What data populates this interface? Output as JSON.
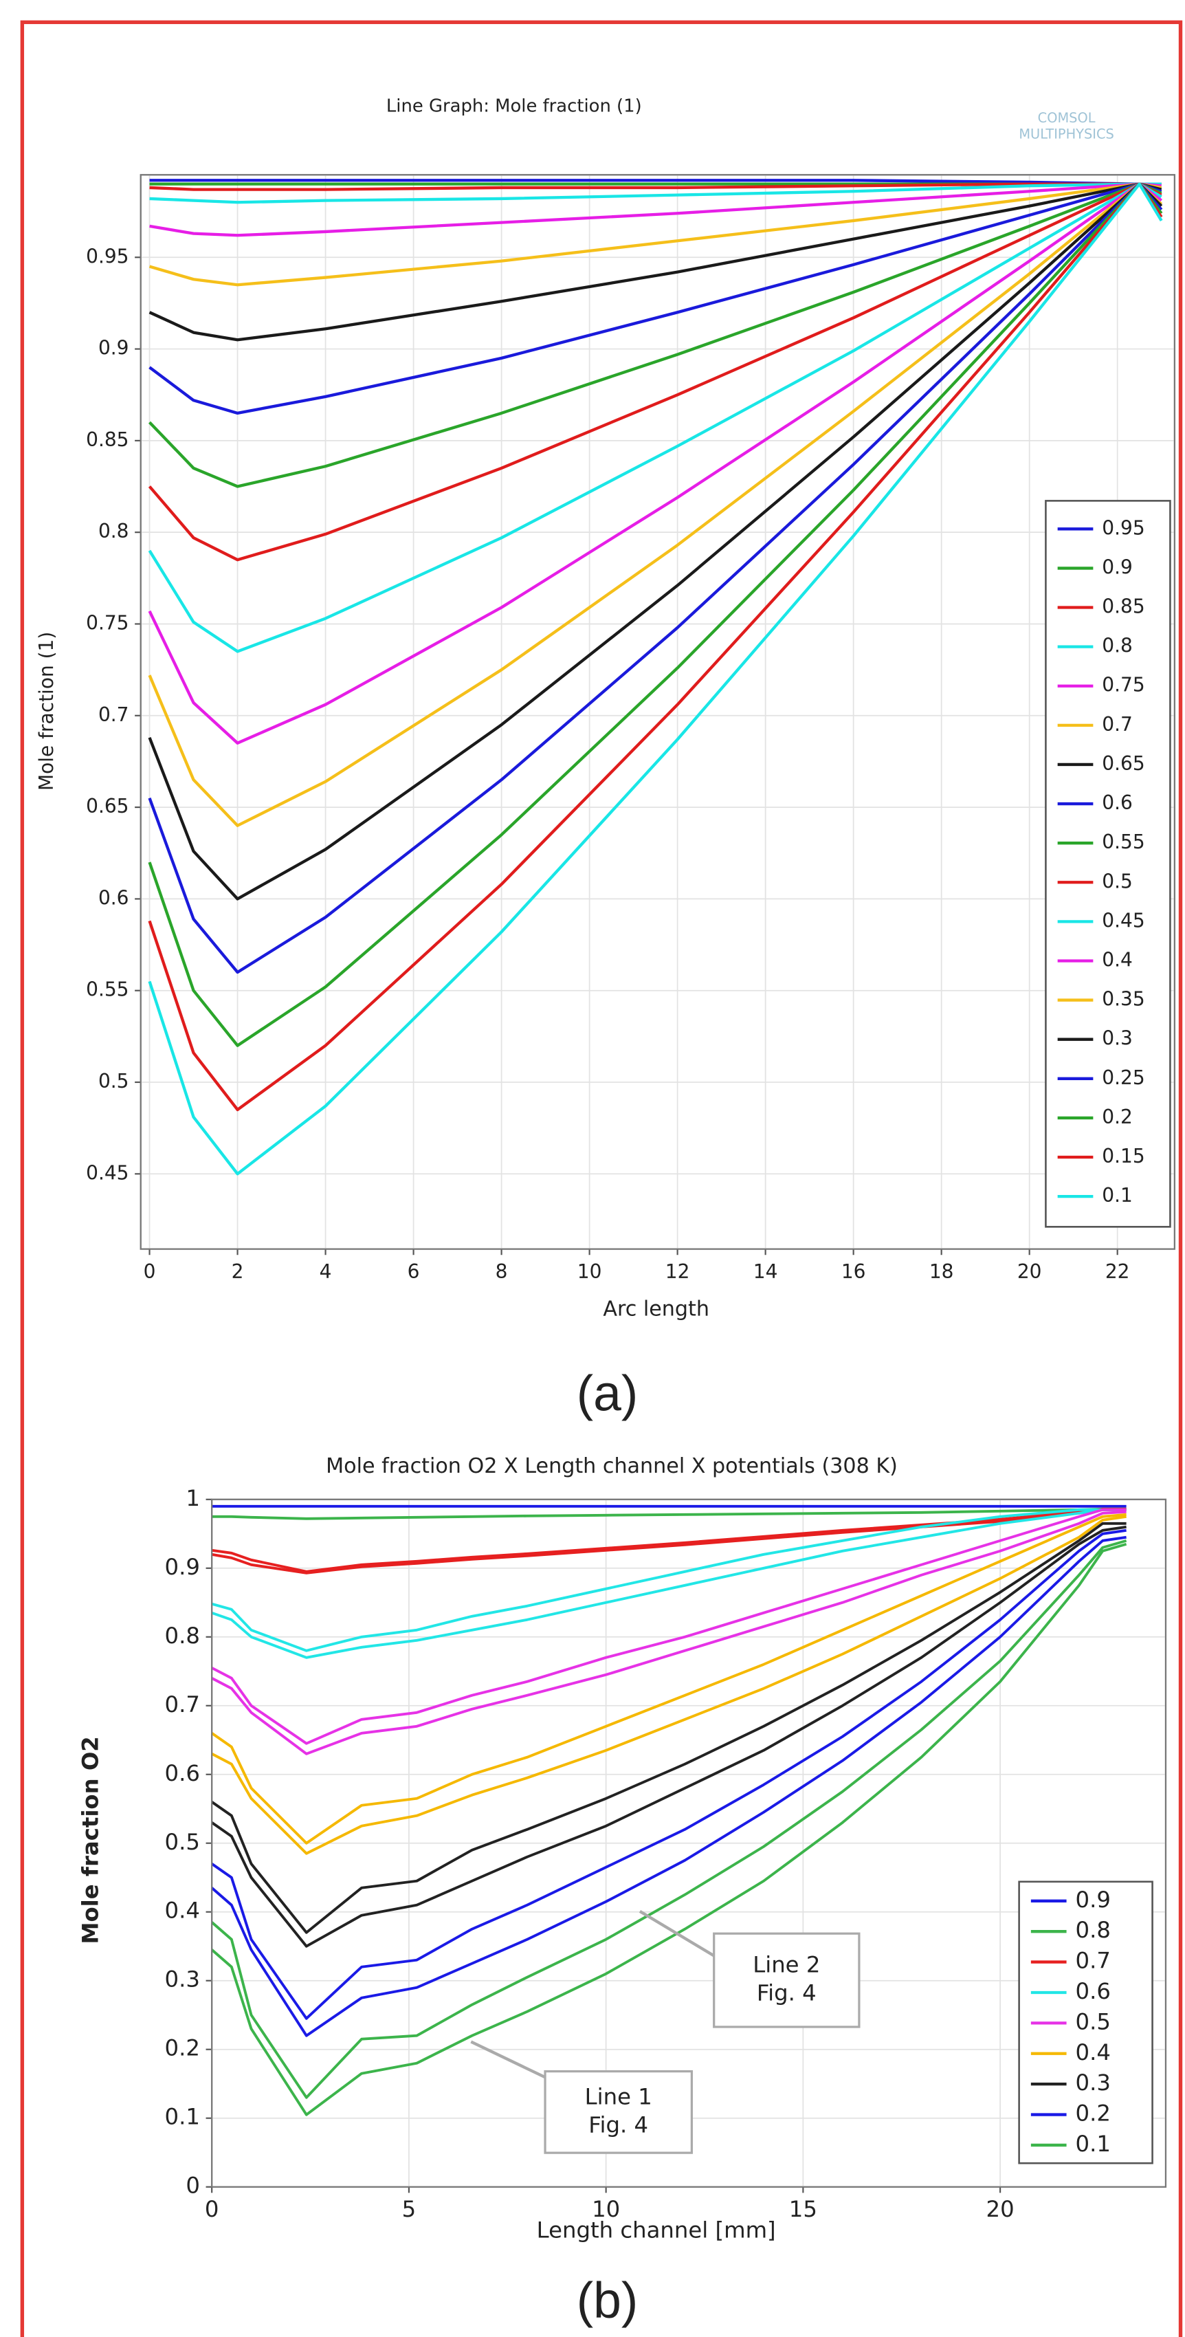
{
  "chart_data": [
    {
      "type": "line",
      "title": "Line Graph: Mole fraction (1)",
      "logo": [
        "COMSOL",
        "MULTIPHYSICS"
      ],
      "x_label": "Arc length",
      "y_label": "Mole fraction (1)",
      "caption": "(a)",
      "x": [
        0,
        1,
        2,
        4,
        8,
        12,
        16,
        20,
        22.5,
        23
      ],
      "xlim": [
        -0.2,
        23.3
      ],
      "xticks": [
        0,
        2,
        4,
        6,
        8,
        10,
        12,
        14,
        16,
        18,
        20,
        22
      ],
      "ylim": [
        0.409,
        0.995
      ],
      "yticks": [
        0.45,
        0.5,
        0.55,
        0.6,
        0.65,
        0.7,
        0.75,
        0.8,
        0.85,
        0.9,
        0.95
      ],
      "grid": true,
      "legend": "lower-right",
      "series": [
        {
          "name": "0.95",
          "color": "#1a1adb",
          "values": [
            0.992,
            0.992,
            0.992,
            0.992,
            0.992,
            0.992,
            0.992,
            0.991,
            0.99,
            0.99
          ]
        },
        {
          "name": "0.9",
          "color": "#2aa52a",
          "values": [
            0.99,
            0.99,
            0.99,
            0.99,
            0.99,
            0.99,
            0.99,
            0.99,
            0.99,
            0.988
          ]
        },
        {
          "name": "0.85",
          "color": "#e01c1c",
          "values": [
            0.988,
            0.987,
            0.987,
            0.987,
            0.988,
            0.988,
            0.989,
            0.99,
            0.99,
            0.99
          ]
        },
        {
          "name": "0.8",
          "color": "#19e6e6",
          "values": [
            0.982,
            0.981,
            0.98,
            0.981,
            0.982,
            0.984,
            0.986,
            0.989,
            0.99,
            0.99
          ]
        },
        {
          "name": "0.75",
          "color": "#e61ee6",
          "values": [
            0.967,
            0.963,
            0.962,
            0.964,
            0.969,
            0.974,
            0.98,
            0.986,
            0.99,
            0.989
          ]
        },
        {
          "name": "0.7",
          "color": "#f5bf1a",
          "values": [
            0.945,
            0.938,
            0.935,
            0.939,
            0.948,
            0.959,
            0.97,
            0.982,
            0.99,
            0.988
          ]
        },
        {
          "name": "0.65",
          "color": "#1a1a1a",
          "values": [
            0.92,
            0.909,
            0.905,
            0.911,
            0.926,
            0.942,
            0.96,
            0.978,
            0.99,
            0.987
          ]
        },
        {
          "name": "0.6",
          "color": "#1a1adb",
          "values": [
            0.89,
            0.872,
            0.865,
            0.874,
            0.895,
            0.92,
            0.946,
            0.973,
            0.99,
            0.986
          ]
        },
        {
          "name": "0.55",
          "color": "#2aa52a",
          "values": [
            0.86,
            0.835,
            0.825,
            0.836,
            0.865,
            0.897,
            0.931,
            0.967,
            0.99,
            0.985
          ]
        },
        {
          "name": "0.5",
          "color": "#e01c1c",
          "values": [
            0.825,
            0.797,
            0.785,
            0.799,
            0.835,
            0.875,
            0.917,
            0.962,
            0.99,
            0.984
          ]
        },
        {
          "name": "0.45",
          "color": "#19e6e6",
          "values": [
            0.79,
            0.751,
            0.735,
            0.753,
            0.797,
            0.847,
            0.899,
            0.955,
            0.99,
            0.983
          ]
        },
        {
          "name": "0.4",
          "color": "#e61ee6",
          "values": [
            0.757,
            0.707,
            0.685,
            0.706,
            0.759,
            0.819,
            0.882,
            0.948,
            0.99,
            0.981
          ]
        },
        {
          "name": "0.35",
          "color": "#f5bf1a",
          "values": [
            0.722,
            0.665,
            0.64,
            0.664,
            0.725,
            0.793,
            0.866,
            0.941,
            0.99,
            0.979
          ]
        },
        {
          "name": "0.3",
          "color": "#1a1a1a",
          "values": [
            0.688,
            0.626,
            0.6,
            0.627,
            0.695,
            0.771,
            0.852,
            0.936,
            0.99,
            0.978
          ]
        },
        {
          "name": "0.25",
          "color": "#1a1adb",
          "values": [
            0.655,
            0.589,
            0.56,
            0.59,
            0.665,
            0.748,
            0.837,
            0.93,
            0.99,
            0.976
          ]
        },
        {
          "name": "0.2",
          "color": "#2aa52a",
          "values": [
            0.62,
            0.55,
            0.52,
            0.552,
            0.635,
            0.726,
            0.823,
            0.925,
            0.99,
            0.974
          ]
        },
        {
          "name": "0.15",
          "color": "#e01c1c",
          "values": [
            0.588,
            0.516,
            0.485,
            0.52,
            0.608,
            0.706,
            0.811,
            0.92,
            0.99,
            0.972
          ]
        },
        {
          "name": "0.1",
          "color": "#19e6e6",
          "values": [
            0.555,
            0.481,
            0.45,
            0.487,
            0.582,
            0.687,
            0.798,
            0.915,
            0.99,
            0.97
          ]
        }
      ]
    },
    {
      "type": "line",
      "title": "Mole fraction O2  X  Length channel  X potentials (308 K)",
      "x_label": "Length channel [mm]",
      "y_label": "Mole fraction O2",
      "caption": "(b)",
      "x": [
        0,
        0.5,
        1,
        2.4,
        3.8,
        5.2,
        6.6,
        8,
        10,
        12,
        14,
        16,
        18,
        20,
        22,
        22.6,
        23.2
      ],
      "xlim": [
        0,
        24.2
      ],
      "xticks": [
        0,
        5,
        10,
        15,
        20
      ],
      "ylim": [
        0,
        1
      ],
      "yticks": [
        0,
        0.1,
        0.2,
        0.3,
        0.4,
        0.5,
        0.6,
        0.7,
        0.8,
        0.9,
        1
      ],
      "grid": true,
      "legend": "lower-right",
      "annotations": [
        {
          "text": [
            "Line 2",
            "Fig. 4"
          ]
        },
        {
          "text": [
            "Line 1",
            "Fig. 4"
          ]
        }
      ],
      "series": [
        {
          "name": "0.9",
          "color": "#1a1ae6",
          "lines": [
            [
              0.99,
              0.99,
              0.99,
              0.99,
              0.99,
              0.99,
              0.99,
              0.99,
              0.99,
              0.99,
              0.99,
              0.99,
              0.99,
              0.99,
              0.99,
              0.99,
              0.99
            ]
          ]
        },
        {
          "name": "0.8",
          "color": "#3cb44b",
          "lines": [
            [
              0.975,
              0.975,
              0.974,
              0.972,
              0.973,
              0.974,
              0.975,
              0.976,
              0.977,
              0.978,
              0.979,
              0.98,
              0.981,
              0.983,
              0.985,
              0.986,
              0.986
            ]
          ]
        },
        {
          "name": "0.7",
          "color": "#e62020",
          "lines": [
            [
              0.926,
              0.922,
              0.912,
              0.895,
              0.905,
              0.91,
              0.916,
              0.921,
              0.929,
              0.937,
              0.946,
              0.955,
              0.963,
              0.971,
              0.982,
              0.986,
              0.986
            ],
            [
              0.92,
              0.915,
              0.905,
              0.893,
              0.902,
              0.907,
              0.913,
              0.918,
              0.926,
              0.934,
              0.943,
              0.952,
              0.96,
              0.968,
              0.98,
              0.985,
              0.985
            ]
          ]
        },
        {
          "name": "0.6",
          "color": "#22e6e6",
          "lines": [
            [
              0.848,
              0.84,
              0.81,
              0.78,
              0.8,
              0.81,
              0.83,
              0.845,
              0.87,
              0.895,
              0.92,
              0.94,
              0.96,
              0.975,
              0.985,
              0.985,
              0.985
            ],
            [
              0.835,
              0.825,
              0.8,
              0.77,
              0.785,
              0.795,
              0.81,
              0.825,
              0.85,
              0.875,
              0.9,
              0.925,
              0.945,
              0.965,
              0.98,
              0.985,
              0.985
            ]
          ]
        },
        {
          "name": "0.5",
          "color": "#e632e6",
          "lines": [
            [
              0.755,
              0.74,
              0.7,
              0.645,
              0.68,
              0.69,
              0.715,
              0.735,
              0.77,
              0.8,
              0.835,
              0.87,
              0.905,
              0.94,
              0.975,
              0.985,
              0.985
            ],
            [
              0.74,
              0.725,
              0.69,
              0.63,
              0.66,
              0.67,
              0.695,
              0.715,
              0.745,
              0.78,
              0.815,
              0.85,
              0.89,
              0.925,
              0.965,
              0.98,
              0.982
            ]
          ]
        },
        {
          "name": "0.4",
          "color": "#f5b800",
          "lines": [
            [
              0.66,
              0.64,
              0.58,
              0.5,
              0.555,
              0.565,
              0.6,
              0.625,
              0.67,
              0.715,
              0.76,
              0.81,
              0.86,
              0.91,
              0.96,
              0.975,
              0.978
            ],
            [
              0.63,
              0.615,
              0.565,
              0.485,
              0.525,
              0.54,
              0.57,
              0.595,
              0.635,
              0.68,
              0.725,
              0.775,
              0.83,
              0.885,
              0.945,
              0.97,
              0.975
            ]
          ]
        },
        {
          "name": "0.3",
          "color": "#222222",
          "lines": [
            [
              0.56,
              0.54,
              0.47,
              0.37,
              0.435,
              0.445,
              0.49,
              0.52,
              0.565,
              0.615,
              0.67,
              0.73,
              0.795,
              0.865,
              0.94,
              0.965,
              0.965
            ],
            [
              0.53,
              0.51,
              0.45,
              0.35,
              0.395,
              0.41,
              0.445,
              0.48,
              0.525,
              0.58,
              0.635,
              0.7,
              0.77,
              0.85,
              0.935,
              0.955,
              0.96
            ]
          ]
        },
        {
          "name": "0.2",
          "color": "#1a1ae6",
          "lines": [
            [
              0.47,
              0.45,
              0.36,
              0.245,
              0.32,
              0.33,
              0.375,
              0.41,
              0.465,
              0.52,
              0.585,
              0.655,
              0.735,
              0.825,
              0.925,
              0.95,
              0.955
            ],
            [
              0.435,
              0.41,
              0.345,
              0.22,
              0.275,
              0.29,
              0.325,
              0.36,
              0.415,
              0.475,
              0.545,
              0.62,
              0.705,
              0.8,
              0.91,
              0.94,
              0.945
            ]
          ]
        },
        {
          "name": "0.1",
          "color": "#3cb44b",
          "lines": [
            [
              0.385,
              0.36,
              0.25,
              0.13,
              0.215,
              0.22,
              0.265,
              0.305,
              0.36,
              0.425,
              0.495,
              0.575,
              0.665,
              0.765,
              0.89,
              0.93,
              0.94
            ],
            [
              0.345,
              0.32,
              0.23,
              0.105,
              0.165,
              0.18,
              0.22,
              0.255,
              0.31,
              0.375,
              0.445,
              0.53,
              0.625,
              0.735,
              0.875,
              0.925,
              0.935
            ]
          ]
        }
      ]
    }
  ]
}
